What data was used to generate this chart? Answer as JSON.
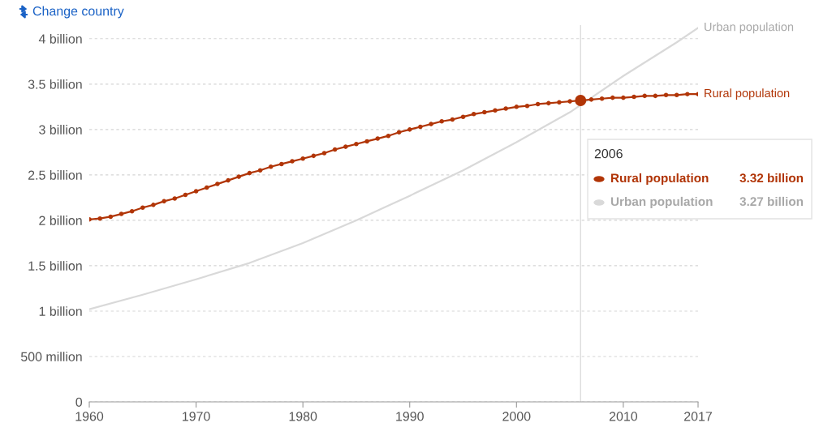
{
  "chart_data": {
    "type": "line",
    "x": [
      1960,
      1961,
      1962,
      1963,
      1964,
      1965,
      1966,
      1967,
      1968,
      1969,
      1970,
      1971,
      1972,
      1973,
      1974,
      1975,
      1976,
      1977,
      1978,
      1979,
      1980,
      1981,
      1982,
      1983,
      1984,
      1985,
      1986,
      1987,
      1988,
      1989,
      1990,
      1991,
      1992,
      1993,
      1994,
      1995,
      1996,
      1997,
      1998,
      1999,
      2000,
      2001,
      2002,
      2003,
      2004,
      2005,
      2006,
      2007,
      2008,
      2009,
      2010,
      2011,
      2012,
      2013,
      2014,
      2015,
      2016,
      2017
    ],
    "series": [
      {
        "name": "Rural population",
        "color": "#b13507",
        "marker": "circle",
        "values": [
          2010000000,
          2020000000,
          2040000000,
          2070000000,
          2100000000,
          2140000000,
          2170000000,
          2210000000,
          2240000000,
          2280000000,
          2320000000,
          2360000000,
          2400000000,
          2440000000,
          2480000000,
          2520000000,
          2550000000,
          2590000000,
          2620000000,
          2650000000,
          2680000000,
          2710000000,
          2740000000,
          2780000000,
          2810000000,
          2840000000,
          2870000000,
          2900000000,
          2930000000,
          2970000000,
          3000000000,
          3030000000,
          3060000000,
          3090000000,
          3110000000,
          3140000000,
          3170000000,
          3190000000,
          3210000000,
          3230000000,
          3250000000,
          3260000000,
          3280000000,
          3290000000,
          3300000000,
          3310000000,
          3320000000,
          3330000000,
          3340000000,
          3350000000,
          3350000000,
          3360000000,
          3370000000,
          3370000000,
          3380000000,
          3380000000,
          3390000000,
          3390000000
        ]
      },
      {
        "name": "Urban population",
        "color": "#d9d9d9",
        "marker": "none",
        "x": [
          1960,
          1965,
          1970,
          1975,
          1980,
          1985,
          1990,
          1995,
          2000,
          2005,
          2006,
          2010,
          2015,
          2017
        ],
        "values": [
          1020000000,
          1180000000,
          1350000000,
          1530000000,
          1750000000,
          2000000000,
          2270000000,
          2550000000,
          2860000000,
          3190000000,
          3270000000,
          3590000000,
          3960000000,
          4120000000
        ]
      }
    ],
    "xlim": [
      1960,
      2017
    ],
    "xticks": [
      1960,
      1970,
      1980,
      1990,
      2000,
      2010,
      2017
    ],
    "ylim": [
      0,
      4150000000
    ],
    "yticks": [
      {
        "value": 0,
        "label": "0"
      },
      {
        "value": 500000000,
        "label": "500 million"
      },
      {
        "value": 1000000000,
        "label": "1 billion"
      },
      {
        "value": 1500000000,
        "label": "1.5 billion"
      },
      {
        "value": 2000000000,
        "label": "2 billion"
      },
      {
        "value": 2500000000,
        "label": "2.5 billion"
      },
      {
        "value": 3000000000,
        "label": "3 billion"
      },
      {
        "value": 3500000000,
        "label": "3.5 billion"
      },
      {
        "value": 4000000000,
        "label": "4 billion"
      }
    ],
    "grid": "y",
    "legend": false,
    "ref_lines": [
      {
        "axis": "x",
        "value": 2006,
        "color": "#dddddd"
      }
    ],
    "annotations": [
      "Change country",
      "2006",
      "Rural population",
      "3.32 billion",
      "Urban population",
      "3.27 billion"
    ]
  }
}
